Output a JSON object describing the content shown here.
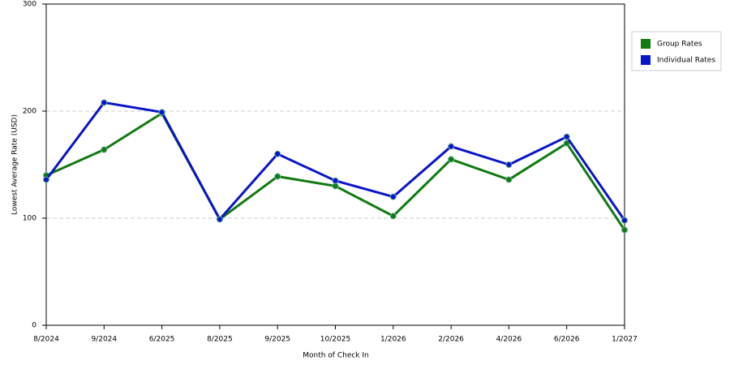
{
  "chart_data": {
    "type": "line",
    "x_label": "Month of Check In",
    "y_label": "Lowest Average Rate (USD)",
    "categories": [
      "8/2024",
      "9/2024",
      "6/2025",
      "8/2025",
      "9/2025",
      "10/2025",
      "1/2026",
      "2/2026",
      "4/2026",
      "6/2026",
      "1/2027"
    ],
    "series": [
      {
        "name": "Group Rates",
        "color": "#117a11",
        "values": [
          140,
          164,
          198,
          99,
          139,
          130,
          102,
          155,
          136,
          170,
          89
        ]
      },
      {
        "name": "Individual Rates",
        "color": "#0a14c8",
        "values": [
          136,
          208,
          199,
          99,
          160,
          135,
          120,
          167,
          150,
          176,
          98
        ]
      }
    ],
    "ylim": [
      0,
      300
    ],
    "yticks": [
      0,
      100,
      200,
      300
    ],
    "grid": true
  }
}
